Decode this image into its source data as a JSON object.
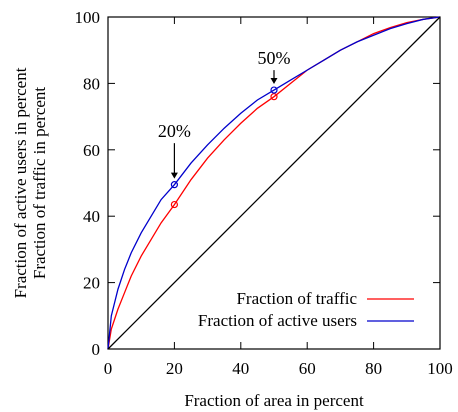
{
  "chart_data": {
    "type": "line",
    "title": "",
    "xlabel": "Fraction of area in percent",
    "ylabel_lines": [
      "Fraction of active users in percent",
      "Fraction of traffic in percent"
    ],
    "xlim": [
      0,
      100
    ],
    "ylim": [
      0,
      100
    ],
    "xticks": [
      "0",
      "20",
      "40",
      "60",
      "80",
      "100"
    ],
    "yticks": [
      "0",
      "20",
      "40",
      "60",
      "80",
      "100"
    ],
    "grid": false,
    "legend_position": "bottom-right",
    "series": [
      {
        "name": "Fraction of traffic",
        "color": "#ff0000",
        "x": [
          0,
          1,
          2,
          3,
          5,
          7,
          10,
          13,
          16,
          20,
          25,
          30,
          35,
          40,
          45,
          50,
          55,
          60,
          65,
          70,
          75,
          80,
          85,
          90,
          95,
          100
        ],
        "y": [
          0,
          6,
          9,
          12,
          17,
          22,
          28,
          33,
          38,
          43.5,
          51,
          57.5,
          63,
          68,
          72.5,
          76,
          80,
          84,
          87,
          90,
          92.5,
          95,
          96.8,
          98.3,
          99.3,
          100
        ]
      },
      {
        "name": "Fraction of active users",
        "color": "#0000cc",
        "x": [
          0,
          1,
          2,
          3,
          5,
          7,
          10,
          13,
          16,
          20,
          25,
          30,
          35,
          40,
          45,
          50,
          55,
          60,
          65,
          70,
          75,
          80,
          85,
          90,
          95,
          100
        ],
        "y": [
          0,
          10,
          14,
          18,
          24,
          29,
          35,
          40,
          45,
          49.5,
          56,
          61.5,
          66.5,
          71,
          75,
          78,
          81,
          84,
          87,
          90,
          92.5,
          94.5,
          96.5,
          98,
          99.3,
          100
        ]
      },
      {
        "name": "",
        "color": "#000000",
        "x": [
          0,
          100
        ],
        "y": [
          0,
          100
        ]
      }
    ],
    "markers": [
      {
        "x": 20,
        "y": 43.5,
        "color": "#ff0000"
      },
      {
        "x": 20,
        "y": 49.5,
        "color": "#0000cc"
      },
      {
        "x": 50,
        "y": 76,
        "color": "#ff0000"
      },
      {
        "x": 50,
        "y": 78,
        "color": "#0000cc"
      }
    ],
    "annotations": [
      {
        "text": "20%",
        "x": 20,
        "y": 49.5,
        "arrow_tail_y": 62
      },
      {
        "text": "50%",
        "x": 50,
        "y": 78,
        "arrow_tail_y": 84
      }
    ]
  }
}
